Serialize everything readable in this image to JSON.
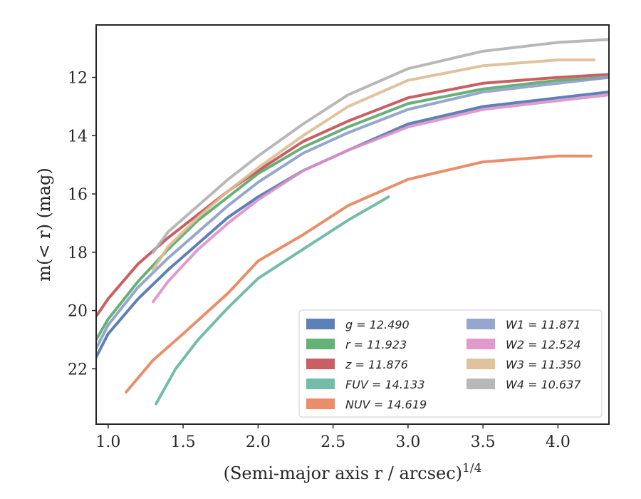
{
  "chart_data": {
    "type": "line",
    "xlabel": "(Semi-major axis r / arcsec)",
    "xlabel_sup": "1/4",
    "ylabel": "m(< r) (mag)",
    "xlim": [
      0.92,
      4.34
    ],
    "ylim": [
      23.9,
      10.2
    ],
    "y_inverted": true,
    "x_ticks": [
      1.0,
      1.5,
      2.0,
      2.5,
      3.0,
      3.5,
      4.0
    ],
    "x_tick_labels": [
      "1.0",
      "1.5",
      "2.0",
      "2.5",
      "3.0",
      "3.5",
      "4.0"
    ],
    "y_ticks": [
      12,
      14,
      16,
      18,
      20,
      22
    ],
    "y_tick_labels": [
      "12",
      "14",
      "16",
      "18",
      "20",
      "22"
    ],
    "grid": false,
    "legend_position": "lower-right",
    "series": [
      {
        "name": "g = 12.490",
        "color": "#4c72b0",
        "x": [
          0.92,
          1.0,
          1.2,
          1.4,
          1.6,
          1.8,
          2.0,
          2.3,
          2.6,
          3.0,
          3.5,
          4.0,
          4.34
        ],
        "y": [
          21.6,
          20.8,
          19.6,
          18.6,
          17.7,
          16.8,
          16.1,
          15.2,
          14.5,
          13.6,
          13.0,
          12.7,
          12.5
        ]
      },
      {
        "name": "r = 11.923",
        "color": "#55a868",
        "x": [
          0.92,
          1.0,
          1.2,
          1.4,
          1.6,
          1.8,
          2.0,
          2.3,
          2.6,
          3.0,
          3.5,
          4.0,
          4.34
        ],
        "y": [
          21.0,
          20.3,
          19.0,
          17.9,
          16.9,
          16.1,
          15.3,
          14.4,
          13.7,
          12.9,
          12.4,
          12.1,
          12.0
        ]
      },
      {
        "name": "z = 11.876",
        "color": "#c44e52",
        "x": [
          0.92,
          1.0,
          1.2,
          1.4,
          1.6,
          1.8,
          2.0,
          2.3,
          2.6,
          3.0,
          3.5,
          4.0,
          4.34
        ],
        "y": [
          20.2,
          19.6,
          18.4,
          17.5,
          16.7,
          15.9,
          15.2,
          14.2,
          13.5,
          12.7,
          12.2,
          12.0,
          11.9
        ]
      },
      {
        "name": "FUV = 14.133",
        "color": "#64b5a0",
        "x": [
          1.32,
          1.45,
          1.6,
          1.8,
          2.0,
          2.3,
          2.6,
          2.87
        ],
        "y": [
          23.2,
          22.0,
          21.0,
          19.9,
          18.9,
          17.9,
          16.9,
          16.1
        ]
      },
      {
        "name": "NUV = 14.619",
        "color": "#e8825a",
        "x": [
          1.12,
          1.3,
          1.5,
          1.8,
          2.0,
          2.3,
          2.6,
          3.0,
          3.5,
          4.0,
          4.22
        ],
        "y": [
          22.8,
          21.7,
          20.8,
          19.4,
          18.3,
          17.4,
          16.4,
          15.5,
          14.9,
          14.7,
          14.7
        ]
      },
      {
        "name": "W1 = 11.871",
        "color": "#8c9cc6",
        "x": [
          0.92,
          1.0,
          1.2,
          1.4,
          1.6,
          1.8,
          2.0,
          2.3,
          2.6,
          3.0,
          3.5,
          4.0,
          4.34
        ],
        "y": [
          21.3,
          20.5,
          19.2,
          18.2,
          17.3,
          16.4,
          15.6,
          14.6,
          13.9,
          13.1,
          12.5,
          12.2,
          12.0
        ]
      },
      {
        "name": "W2 = 12.524",
        "color": "#dd8fc6",
        "x": [
          1.3,
          1.4,
          1.6,
          1.8,
          2.0,
          2.3,
          2.6,
          3.0,
          3.5,
          4.0,
          4.34
        ],
        "y": [
          19.7,
          19.0,
          17.9,
          17.0,
          16.2,
          15.2,
          14.5,
          13.7,
          13.1,
          12.8,
          12.6
        ]
      },
      {
        "name": "W3 = 11.350",
        "color": "#dcbc94",
        "x": [
          1.3,
          1.4,
          1.6,
          1.8,
          2.0,
          2.3,
          2.6,
          3.0,
          3.5,
          4.0,
          4.24
        ],
        "y": [
          18.6,
          17.8,
          16.8,
          15.9,
          15.1,
          14.0,
          13.0,
          12.1,
          11.6,
          11.4,
          11.4
        ]
      },
      {
        "name": "W4 = 10.637",
        "color": "#b0b0b0",
        "x": [
          1.3,
          1.4,
          1.6,
          1.8,
          2.0,
          2.3,
          2.6,
          3.0,
          3.5,
          4.0,
          4.34
        ],
        "y": [
          18.0,
          17.3,
          16.4,
          15.5,
          14.7,
          13.6,
          12.6,
          11.7,
          11.1,
          10.8,
          10.7
        ]
      }
    ]
  }
}
